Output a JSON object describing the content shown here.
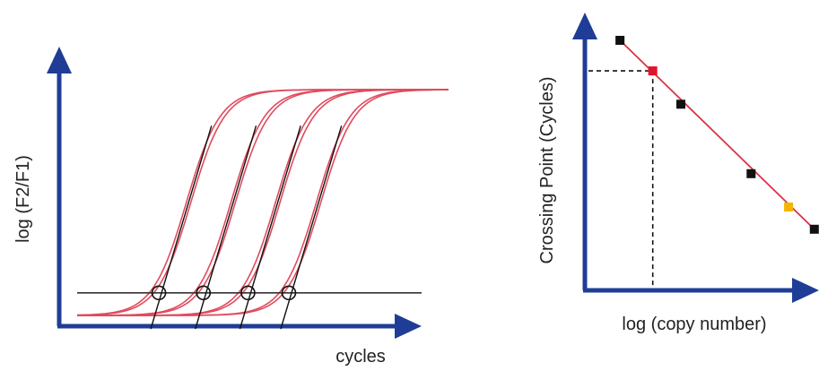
{
  "chart_data": [
    {
      "type": "line",
      "title": "",
      "xlabel": "cycles",
      "ylabel": "log (F2/F1)",
      "grid": false,
      "threshold": {
        "y": 0.1
      },
      "series": [
        {
          "midpoint": 0.3
        },
        {
          "midpoint": 0.42
        },
        {
          "midpoint": 0.54
        },
        {
          "midpoint": 0.65
        }
      ],
      "crossing_points": [
        {
          "x": 0.22,
          "y": 0.1
        },
        {
          "x": 0.34,
          "y": 0.1
        },
        {
          "x": 0.46,
          "y": 0.1
        },
        {
          "x": 0.57,
          "y": 0.1
        }
      ]
    },
    {
      "type": "scatter",
      "title": "",
      "xlabel": "log (copy number)",
      "ylabel": "Crossing Point (Cycles)",
      "grid": false,
      "fit_line": true,
      "points": [
        {
          "x": 0.15,
          "y": 0.9,
          "role": "standard"
        },
        {
          "x": 0.29,
          "y": 0.79,
          "role": "unknown"
        },
        {
          "x": 0.41,
          "y": 0.67,
          "role": "standard"
        },
        {
          "x": 0.71,
          "y": 0.42,
          "role": "standard"
        },
        {
          "x": 0.87,
          "y": 0.3,
          "role": "highlight"
        },
        {
          "x": 0.98,
          "y": 0.22,
          "role": "standard"
        }
      ],
      "dashed_readout": {
        "x": 0.29,
        "y": 0.79
      }
    }
  ],
  "colors": {
    "axis": "#1f3d96",
    "curve": "#e04b5d",
    "tangent": "#111111",
    "threshold": "#333333",
    "standard_point": "#111111",
    "unknown_point": "#e0142c",
    "highlight_point": "#f5b400",
    "fit_line": "#d93347"
  }
}
